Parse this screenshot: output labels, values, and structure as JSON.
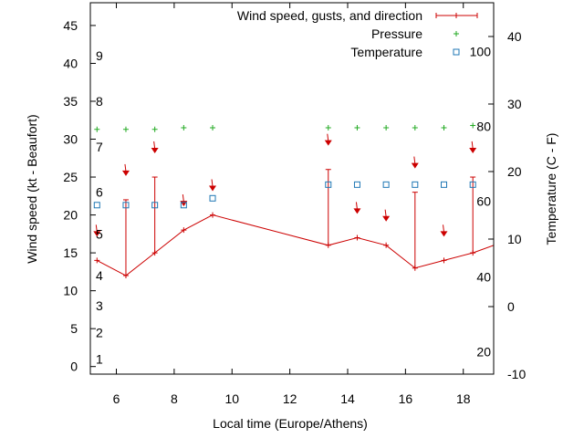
{
  "chart_data": {
    "type": "line",
    "xlabel": "Local time (Europe/Athens)",
    "ylabel_left": "Wind speed (kt - Beaufort)",
    "ylabel_right": "Temperature (C - F)",
    "xlim": [
      5.1,
      19.05
    ],
    "ylim_left": [
      -1,
      48
    ],
    "ylim_right": [
      -10,
      45
    ],
    "x_ticks": [
      6,
      8,
      10,
      12,
      14,
      16,
      18
    ],
    "y_left_ticks": [
      0,
      5,
      10,
      15,
      20,
      25,
      30,
      35,
      40,
      45
    ],
    "y_right_ticks": [
      -10,
      0,
      10,
      20,
      30,
      40
    ],
    "beaufort_labels": [
      {
        "label": "1",
        "kt": 1
      },
      {
        "label": "2",
        "kt": 4.5
      },
      {
        "label": "3",
        "kt": 8
      },
      {
        "label": "4",
        "kt": 12
      },
      {
        "label": "5",
        "kt": 17.5
      },
      {
        "label": "6",
        "kt": 23
      },
      {
        "label": "7",
        "kt": 29
      },
      {
        "label": "8",
        "kt": 35
      },
      {
        "label": "9",
        "kt": 41
      }
    ],
    "fahrenheit_labels": [
      {
        "label": "20",
        "celsius": -6.7
      },
      {
        "label": "40",
        "celsius": 4.4
      },
      {
        "label": "60",
        "celsius": 15.6
      },
      {
        "label": "80",
        "celsius": 26.7
      },
      {
        "label": "100",
        "celsius": 37.8
      }
    ],
    "legend_position": "top-right",
    "series": [
      {
        "name": "Wind speed, gusts, and direction",
        "color": "#cc0000",
        "x": [
          5.33,
          6.33,
          7.33,
          8.33,
          9.33,
          13.33,
          14.33,
          15.33,
          16.33,
          17.33,
          18.33,
          19.05
        ],
        "values": [
          14,
          12,
          15,
          18,
          20,
          16,
          17,
          16,
          13,
          14,
          15,
          16
        ],
        "gusts": [
          null,
          22,
          25,
          null,
          null,
          26,
          null,
          null,
          23,
          null,
          25,
          null
        ],
        "direction_marker_y": [
          17.5,
          25.5,
          28.5,
          21.5,
          23.5,
          29.5,
          20.5,
          19.5,
          26.5,
          17.5,
          28.5,
          null
        ]
      },
      {
        "name": "Pressure",
        "color": "#22aa22",
        "x": [
          5.33,
          6.33,
          7.33,
          8.33,
          9.33,
          13.33,
          14.33,
          15.33,
          16.33,
          17.33,
          18.33
        ],
        "values": [
          31.3,
          31.3,
          31.3,
          31.5,
          31.5,
          31.5,
          31.5,
          31.5,
          31.5,
          31.5,
          31.8
        ]
      },
      {
        "name": "Temperature",
        "color": "#1f77b4",
        "x": [
          5.33,
          6.33,
          7.33,
          8.33,
          9.33,
          13.33,
          14.33,
          15.33,
          16.33,
          17.33,
          18.33
        ],
        "values": [
          21.3,
          21.3,
          21.3,
          21.3,
          22.2,
          24,
          24,
          24,
          24,
          24,
          24
        ]
      }
    ]
  }
}
